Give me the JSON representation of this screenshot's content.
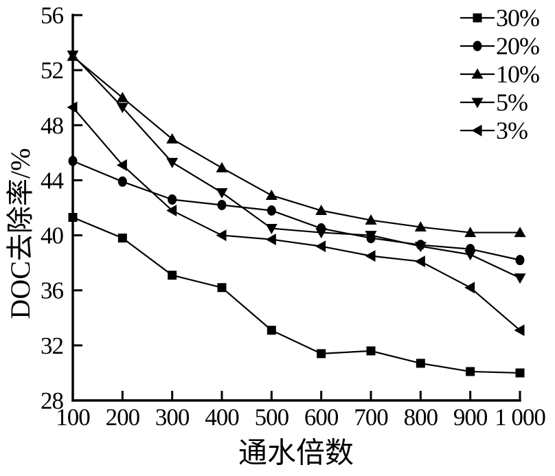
{
  "figure": {
    "background_color": "#ffffff",
    "ink_color": "#000000"
  },
  "chart_data": {
    "type": "line",
    "title": "",
    "xlabel": "通水倍数",
    "ylabel": "DOC去除率/%",
    "xlim": [
      100,
      1000
    ],
    "ylim": [
      28,
      56
    ],
    "grid": false,
    "legend_position": "top-right",
    "x": [
      100,
      200,
      300,
      400,
      500,
      600,
      700,
      800,
      900,
      1000
    ],
    "xticklabels": [
      "100",
      "200",
      "300",
      "400",
      "500",
      "600",
      "700",
      "800",
      "900",
      "1 000"
    ],
    "yticks": [
      28,
      32,
      36,
      40,
      44,
      48,
      52,
      56
    ],
    "series": [
      {
        "name": "30pct",
        "label": "30%",
        "marker": "square",
        "values": [
          41.3,
          39.8,
          37.1,
          36.2,
          33.1,
          31.4,
          31.6,
          30.7,
          30.1,
          30.0
        ]
      },
      {
        "name": "20pct",
        "label": "20%",
        "marker": "circle",
        "values": [
          45.4,
          43.9,
          42.6,
          42.2,
          41.8,
          40.5,
          39.8,
          39.3,
          39.0,
          38.2
        ]
      },
      {
        "name": "10pct",
        "label": "10%",
        "marker": "triangle-up",
        "values": [
          53.0,
          50.0,
          47.0,
          44.9,
          42.9,
          41.8,
          41.1,
          40.6,
          40.2,
          40.2
        ]
      },
      {
        "name": "5pct",
        "label": "5%",
        "marker": "triangle-down",
        "values": [
          53.1,
          49.3,
          45.3,
          43.1,
          40.5,
          40.2,
          40.0,
          39.2,
          38.6,
          36.9
        ]
      },
      {
        "name": "3pct",
        "label": "3%",
        "marker": "triangle-left",
        "values": [
          49.3,
          45.1,
          41.8,
          40.0,
          39.7,
          39.2,
          38.5,
          38.1,
          36.2,
          33.1
        ]
      }
    ]
  }
}
